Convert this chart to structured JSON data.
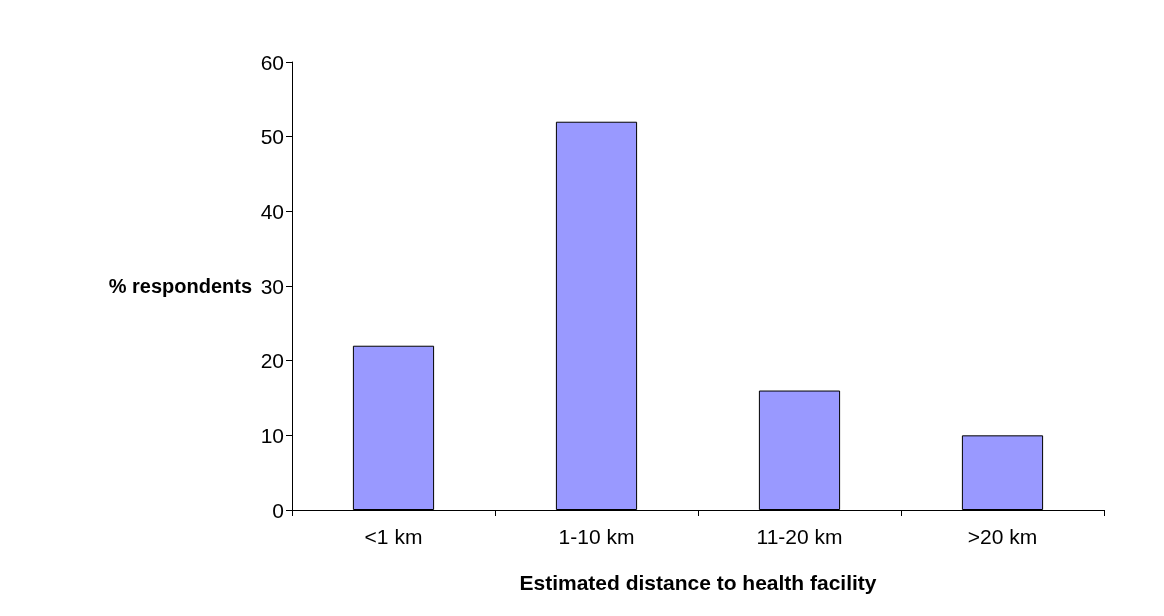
{
  "chart_data": {
    "type": "bar",
    "xlabel": "Estimated distance to health facility",
    "ylabel": "% respondents",
    "categories": [
      "<1 km",
      "1-10 km",
      "11-20 km",
      ">20 km"
    ],
    "values": [
      22,
      52,
      16,
      10
    ],
    "color": "#9999ff",
    "ylim": [
      0,
      60
    ],
    "yticks": [
      0,
      10,
      20,
      30,
      40,
      50,
      60
    ],
    "grid": false
  }
}
